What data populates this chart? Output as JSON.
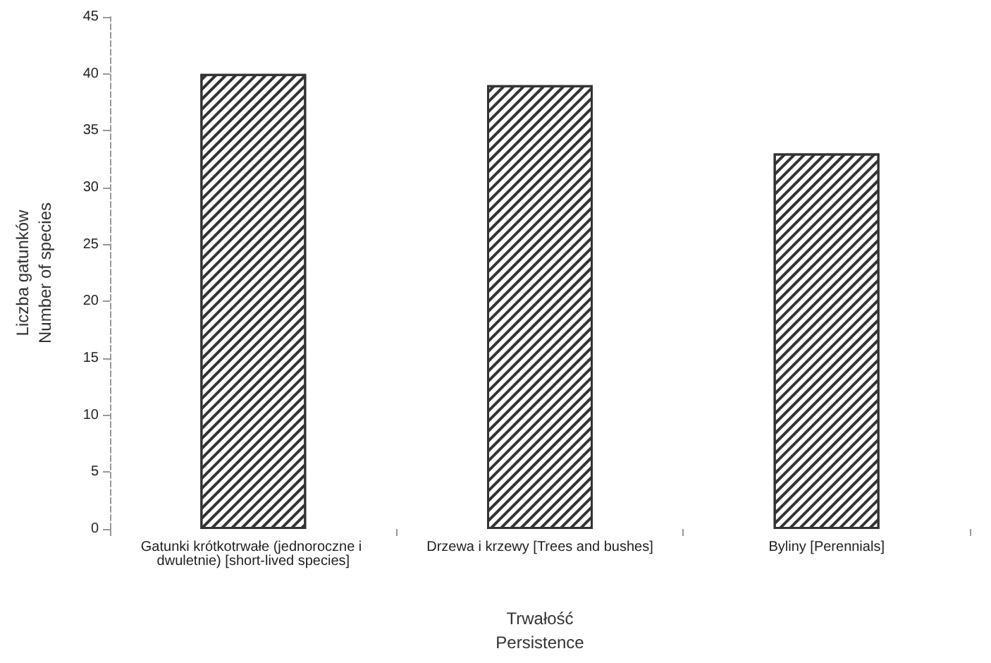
{
  "chart_data": {
    "type": "bar",
    "xlabel": "Trwałość\nPersistence",
    "ylabel": "Liczba gatunków\nNumber of species",
    "categories": [
      "Gatunki krótkotrwałe (jednoroczne i dwuletnie) [short-lived species]",
      "Drzewa i krzewy [Trees and bushes]",
      "Byliny [Perennials]"
    ],
    "values": [
      40,
      39,
      33
    ],
    "color": "#333333",
    "ylim": [
      0,
      45
    ],
    "yticks": [
      0,
      5,
      10,
      15,
      20,
      25,
      30,
      35,
      40,
      45
    ]
  }
}
